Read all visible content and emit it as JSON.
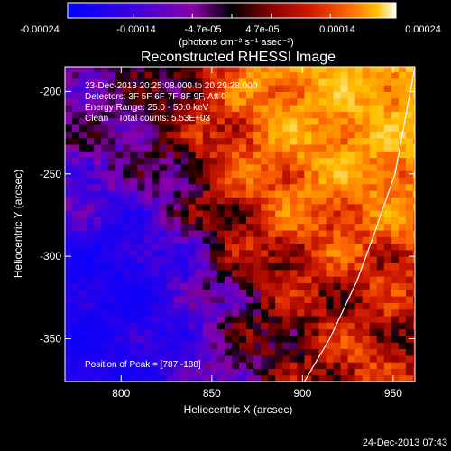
{
  "colorbar": {
    "ticks": [
      "-0.00024",
      "-0.00014",
      "-4.7e-05",
      "4.7e-05",
      "0.00014",
      "0.00024"
    ],
    "unit_label": "(photons cm⁻² s⁻¹ asec⁻²)",
    "colors": [
      "#0000ff",
      "#3a00e0",
      "#8a00a8",
      "#000000",
      "#8a0000",
      "#d01a00",
      "#ff6a00",
      "#ffc000",
      "#ffffff"
    ]
  },
  "chart_data": {
    "type": "heatmap",
    "title": "Reconstructed RHESSI Image",
    "xlabel": "Heliocentric X (arcsec)",
    "ylabel": "Heliocentric Y (arcsec)",
    "xlim": [
      769,
      962
    ],
    "ylim": [
      -376,
      -185
    ],
    "x_ticks": [
      800,
      850,
      900,
      950
    ],
    "y_ticks": [
      -200,
      -250,
      -300,
      -350
    ],
    "value_range": [
      -0.00024,
      0.00024
    ],
    "peak_position": [
      787,
      -188
    ],
    "limb_curve": [
      [
        901,
        -376
      ],
      [
        915,
        -350
      ],
      [
        930,
        -315
      ],
      [
        940,
        -285
      ],
      [
        951,
        -250
      ],
      [
        962,
        -185
      ]
    ],
    "info_lines": [
      "23-Dec-2013 20:25:08.000 to 20:29:28.000",
      "Detectors: 3F 5F 6F 7F 8F 9F, Att 0",
      "Energy Range: 25.0 - 50.0 keV",
      "Clean    Total counts: 5.53E+03"
    ],
    "peak_label": "Position of Peak = [787,-188]"
  },
  "footer": {
    "timestamp": "24-Dec-2013 07:43"
  }
}
